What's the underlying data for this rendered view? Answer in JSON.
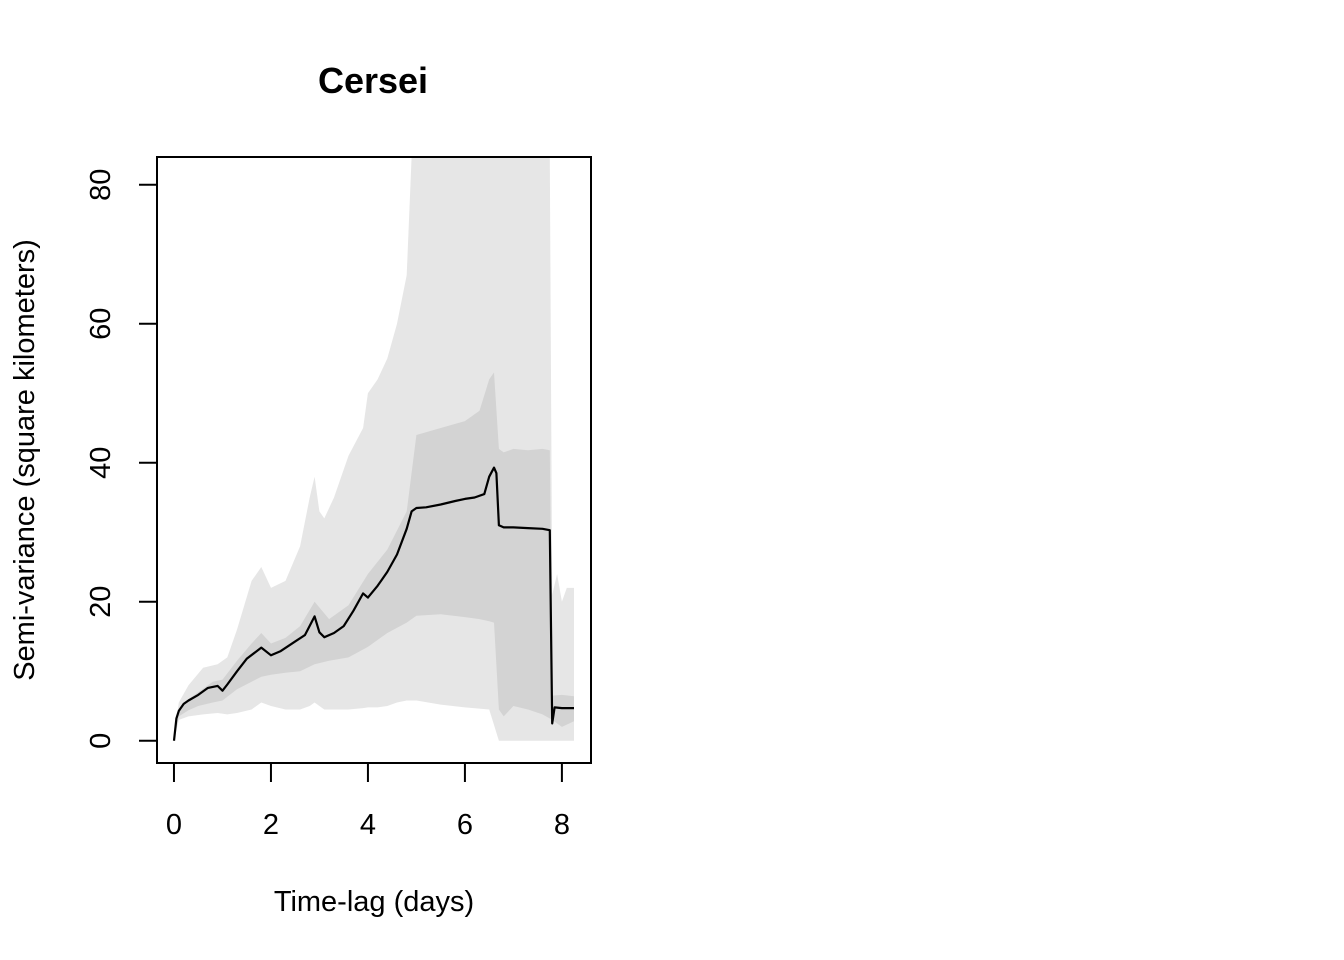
{
  "chart_data": {
    "type": "line",
    "title": "Cersei",
    "xlabel": "Time-lag (days)",
    "ylabel": "Semi-variance (square kilometers)",
    "xlim": [
      -0.35,
      8.6
    ],
    "ylim": [
      -3.2,
      84
    ],
    "x_ticks": [
      0,
      2,
      4,
      6,
      8
    ],
    "y_ticks": [
      0,
      20,
      40,
      60,
      80
    ],
    "grid": false,
    "legend": "none",
    "colors": {
      "line": "#000000",
      "inner_band": "#d3d3d3",
      "outer_band": "#e6e6e6"
    },
    "series": [
      {
        "x": [
          0,
          0.05,
          0.1,
          0.2,
          0.3,
          0.5,
          0.7,
          0.9,
          1.0,
          1.1,
          1.3,
          1.5,
          1.8,
          2.0,
          2.2,
          2.5,
          2.7,
          2.9,
          3.0,
          3.1,
          3.3,
          3.5,
          3.7,
          3.9,
          4.0,
          4.2,
          4.4,
          4.6,
          4.8,
          4.9,
          5.0,
          5.2,
          5.5,
          5.8,
          6.0,
          6.2,
          6.4,
          6.5,
          6.6,
          6.65,
          6.7,
          6.8,
          7.0,
          7.3,
          7.6,
          7.75,
          7.8,
          7.85,
          8.0,
          8.25
        ],
        "y": [
          0,
          3.2,
          4.3,
          5.3,
          5.8,
          6.6,
          7.6,
          7.9,
          7.2,
          8.1,
          10.0,
          11.8,
          13.4,
          12.3,
          12.9,
          14.3,
          15.2,
          17.9,
          15.6,
          14.9,
          15.5,
          16.5,
          18.7,
          21.2,
          20.6,
          22.3,
          24.3,
          26.8,
          30.5,
          33.0,
          33.5,
          33.6,
          34.0,
          34.5,
          34.8,
          35.0,
          35.5,
          38.0,
          39.3,
          38.5,
          31.0,
          30.7,
          30.7,
          30.6,
          30.5,
          30.3,
          2.5,
          4.8,
          4.7,
          4.7
        ]
      }
    ],
    "inner_band": {
      "x": [
        0,
        0.1,
        0.3,
        0.5,
        0.8,
        1.0,
        1.3,
        1.6,
        1.8,
        2.0,
        2.3,
        2.6,
        2.9,
        3.2,
        3.6,
        4.0,
        4.4,
        4.8,
        5.0,
        5.5,
        6.0,
        6.3,
        6.5,
        6.6,
        6.7,
        6.8,
        7.0,
        7.3,
        7.6,
        7.75,
        7.8,
        8.0,
        8.25
      ],
      "upper": [
        0.5,
        4.5,
        6.0,
        7.0,
        8.5,
        8.8,
        11.5,
        14.0,
        15.5,
        14.0,
        14.8,
        16.5,
        20.0,
        17.5,
        19.5,
        24.0,
        27.5,
        33.0,
        44.0,
        45.0,
        46.0,
        47.5,
        52.0,
        53.0,
        42.0,
        41.5,
        42.0,
        41.8,
        42.0,
        41.8,
        6.5,
        6.6,
        6.4
      ],
      "lower": [
        0,
        3.5,
        4.4,
        5.0,
        5.5,
        5.8,
        7.4,
        8.5,
        9.2,
        9.5,
        9.8,
        10.0,
        11.0,
        11.5,
        12.0,
        13.5,
        15.5,
        17.0,
        18.0,
        18.2,
        17.8,
        17.5,
        17.2,
        17.0,
        4.5,
        3.5,
        5.0,
        4.5,
        3.8,
        3.2,
        3.0,
        2.0,
        2.8
      ]
    },
    "outer_band": {
      "x": [
        0,
        0.1,
        0.3,
        0.6,
        0.9,
        1.1,
        1.3,
        1.6,
        1.8,
        2.0,
        2.3,
        2.6,
        2.8,
        2.9,
        3.0,
        3.1,
        3.3,
        3.6,
        3.9,
        4.0,
        4.2,
        4.4,
        4.6,
        4.8,
        4.9,
        5.0,
        5.5,
        6.0,
        6.5,
        6.7,
        7.0,
        7.3,
        7.6,
        7.75,
        7.8,
        7.9,
        8.0,
        8.1,
        8.25
      ],
      "upper": [
        0.5,
        5.5,
        8.0,
        10.5,
        11.0,
        12.0,
        16.0,
        23.0,
        25.0,
        22.0,
        23.0,
        28.0,
        35.0,
        38.0,
        33.0,
        32.0,
        35.0,
        41.0,
        45.0,
        50.0,
        52.0,
        55.0,
        60.0,
        67.0,
        84,
        84,
        84,
        84,
        84,
        84,
        84,
        84,
        84,
        84,
        21.0,
        24.0,
        20.0,
        22.0,
        22.0
      ],
      "lower": [
        0,
        3.0,
        3.5,
        3.8,
        4.0,
        3.8,
        4.0,
        4.5,
        5.5,
        5.0,
        4.5,
        4.5,
        5.0,
        5.5,
        5.0,
        4.5,
        4.5,
        4.5,
        4.7,
        4.8,
        4.8,
        5.0,
        5.5,
        5.8,
        5.8,
        5.8,
        5.2,
        4.8,
        4.5,
        0,
        0,
        0,
        0,
        0,
        0,
        0,
        0,
        0,
        0
      ]
    }
  }
}
